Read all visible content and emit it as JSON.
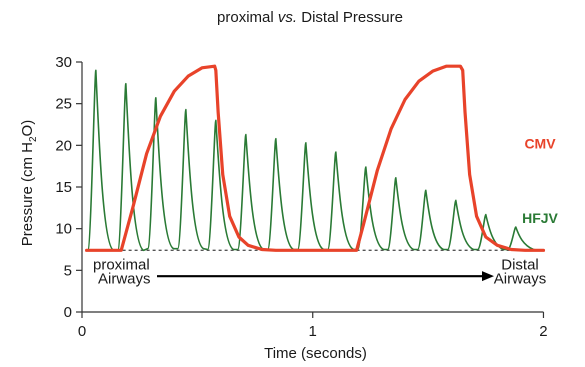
{
  "chart_data": {
    "type": "line",
    "title": {
      "part1": "proximal ",
      "part2": "vs.",
      "part3": " Distal Pressure"
    },
    "xlabel": "Time (seconds)",
    "ylabel": {
      "main": "Pressure (cm H",
      "sub": "2",
      "end": "O)"
    },
    "xlim": [
      0,
      2.05
    ],
    "ylim": [
      0,
      30
    ],
    "xticks": [
      {
        "value": 0,
        "label": "0"
      },
      {
        "value": 1,
        "label": "1"
      },
      {
        "value": 2,
        "label": "2"
      }
    ],
    "yticks": [
      {
        "value": 0,
        "label": "0"
      },
      {
        "value": 5,
        "label": "5"
      },
      {
        "value": 10,
        "label": "10"
      },
      {
        "value": 15,
        "label": "15"
      },
      {
        "value": 20,
        "label": "20"
      },
      {
        "value": 25,
        "label": "25"
      },
      {
        "value": 30,
        "label": "30"
      }
    ],
    "grid": false,
    "baseline": 7.4,
    "series": [
      {
        "name": "CMV",
        "color": "#e8432a",
        "points": [
          [
            0.02,
            7.4
          ],
          [
            0.17,
            7.4
          ],
          [
            0.22,
            12.5
          ],
          [
            0.28,
            19
          ],
          [
            0.34,
            23.5
          ],
          [
            0.4,
            26.5
          ],
          [
            0.46,
            28.3
          ],
          [
            0.52,
            29.3
          ],
          [
            0.575,
            29.5
          ],
          [
            0.58,
            29.0
          ],
          [
            0.59,
            24.0
          ],
          [
            0.61,
            16.5
          ],
          [
            0.64,
            11.5
          ],
          [
            0.68,
            9.0
          ],
          [
            0.72,
            8.0
          ],
          [
            0.78,
            7.5
          ],
          [
            0.84,
            7.4
          ],
          [
            1.19,
            7.4
          ],
          [
            1.22,
            10.5
          ],
          [
            1.28,
            17.0
          ],
          [
            1.34,
            22.0
          ],
          [
            1.4,
            25.5
          ],
          [
            1.46,
            27.7
          ],
          [
            1.52,
            28.9
          ],
          [
            1.58,
            29.5
          ],
          [
            1.64,
            29.5
          ],
          [
            1.65,
            29.0
          ],
          [
            1.66,
            24.0
          ],
          [
            1.68,
            16.5
          ],
          [
            1.71,
            11.5
          ],
          [
            1.75,
            9.0
          ],
          [
            1.8,
            8.0
          ],
          [
            1.86,
            7.5
          ],
          [
            1.92,
            7.4
          ],
          [
            2.0,
            7.4
          ]
        ]
      },
      {
        "name": "HFJV",
        "color": "#2a7a35",
        "baseline": 7.4,
        "pulse_width": 0.035,
        "pulses": [
          {
            "t": 0.06,
            "peak": 29.0,
            "trough": 7.4
          },
          {
            "t": 0.19,
            "peak": 27.4,
            "trough": 7.4
          },
          {
            "t": 0.32,
            "peak": 25.7,
            "trough": 7.6
          },
          {
            "t": 0.45,
            "peak": 24.3,
            "trough": 7.6
          },
          {
            "t": 0.58,
            "peak": 23.0,
            "trough": 7.5
          },
          {
            "t": 0.71,
            "peak": 21.3,
            "trough": 7.5
          },
          {
            "t": 0.84,
            "peak": 20.8,
            "trough": 7.5
          },
          {
            "t": 0.97,
            "peak": 20.3,
            "trough": 7.5
          },
          {
            "t": 1.1,
            "peak": 19.2,
            "trough": 7.5
          },
          {
            "t": 1.23,
            "peak": 17.4,
            "trough": 7.5
          },
          {
            "t": 1.36,
            "peak": 16.1,
            "trough": 7.5
          },
          {
            "t": 1.49,
            "peak": 14.6,
            "trough": 7.5
          },
          {
            "t": 1.62,
            "peak": 13.4,
            "trough": 7.5
          },
          {
            "t": 1.75,
            "peak": 11.7,
            "trough": 7.5
          },
          {
            "t": 1.88,
            "peak": 10.2,
            "trough": 7.5
          }
        ]
      }
    ],
    "annotations": {
      "left": [
        "proximal",
        "Airways"
      ],
      "right": [
        "Distal",
        "Airways"
      ]
    }
  }
}
